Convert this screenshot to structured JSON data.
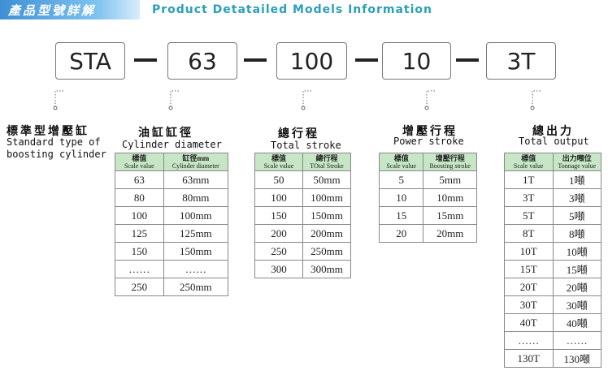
{
  "header": {
    "title_cn": "產品型號詳解",
    "title_en": "Product Detatailed Models Information"
  },
  "model_code": [
    "STA",
    "63",
    "100",
    "10",
    "3T"
  ],
  "sections": [
    {
      "label_cn": "標準型增壓缸",
      "label_en": [
        "Standard type of",
        "boosting cylinder"
      ]
    },
    {
      "label_cn": "油缸缸徑",
      "label_en": [
        "Cylinder diameter"
      ],
      "table": {
        "headers": [
          [
            "標值",
            "Scale value"
          ],
          [
            "缸徑mm",
            "Cylinder diameter"
          ]
        ],
        "rows": [
          [
            "63",
            "63mm"
          ],
          [
            "80",
            "80mm"
          ],
          [
            "100",
            "100mm"
          ],
          [
            "125",
            "125mm"
          ],
          [
            "150",
            "150mm"
          ],
          [
            "……",
            "……"
          ],
          [
            "250",
            "250mm"
          ]
        ]
      }
    },
    {
      "label_cn": "總行程",
      "label_en": [
        "Total stroke"
      ],
      "table": {
        "headers": [
          [
            "標值",
            "Scale value"
          ],
          [
            "總行程",
            "TOtal Stroke"
          ]
        ],
        "rows": [
          [
            "50",
            "50mm"
          ],
          [
            "100",
            "100mm"
          ],
          [
            "150",
            "150mm"
          ],
          [
            "200",
            "200mm"
          ],
          [
            "250",
            "250mm"
          ],
          [
            "300",
            "300mm"
          ]
        ]
      }
    },
    {
      "label_cn": "增壓行程",
      "label_en": [
        "Power stroke"
      ],
      "table": {
        "headers": [
          [
            "標值",
            "Scale value"
          ],
          [
            "增壓行程",
            "Boosting stroke"
          ]
        ],
        "rows": [
          [
            "5",
            "5mm"
          ],
          [
            "10",
            "10mm"
          ],
          [
            "15",
            "15mm"
          ],
          [
            "20",
            "20mm"
          ]
        ]
      }
    },
    {
      "label_cn": "總出力",
      "label_en": [
        "Total output"
      ],
      "table": {
        "headers": [
          [
            "標值",
            "Scale value"
          ],
          [
            "出力噸位",
            "Tonnage value"
          ]
        ],
        "rows": [
          [
            "1T",
            "1噸"
          ],
          [
            "3T",
            "3噸"
          ],
          [
            "5T",
            "5噸"
          ],
          [
            "8T",
            "8噸"
          ],
          [
            "10T",
            "10噸"
          ],
          [
            "15T",
            "15噸"
          ],
          [
            "20T",
            "20噸"
          ],
          [
            "30T",
            "30噸"
          ],
          [
            "40T",
            "40噸"
          ],
          [
            "……",
            "……"
          ],
          [
            "130T",
            "130噸"
          ]
        ]
      }
    }
  ]
}
